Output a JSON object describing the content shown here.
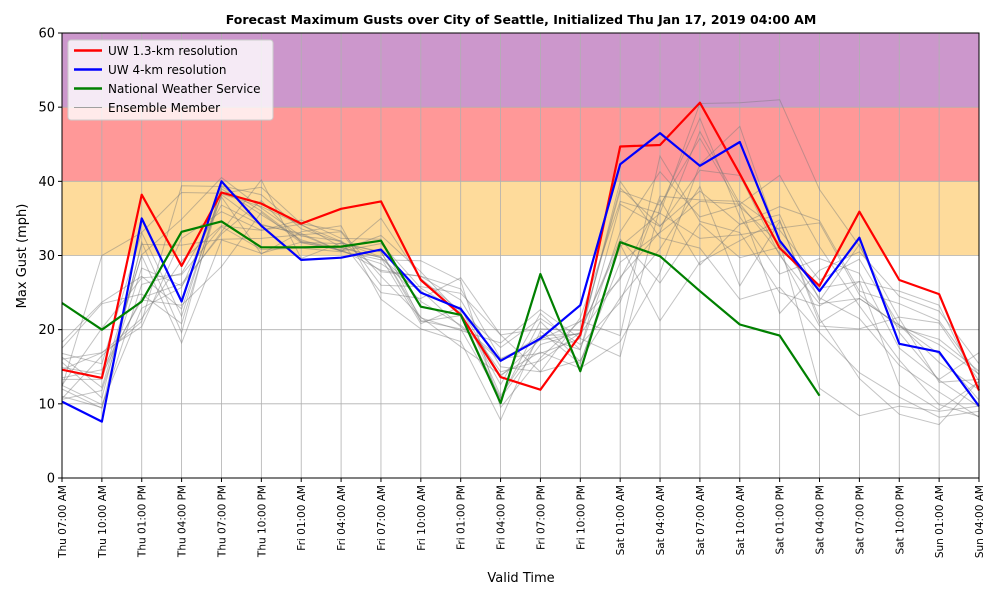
{
  "chart_data": {
    "type": "line",
    "title": "Forecast Maximum Gusts over City of Seattle, Initialized Thu Jan 17, 2019 04:00 AM",
    "xlabel": "Valid Time",
    "ylabel": "Max Gust (mph)",
    "ylim": [
      0,
      60
    ],
    "yticks": [
      0,
      10,
      20,
      30,
      40,
      50,
      60
    ],
    "grid": true,
    "legend_position": "top-left",
    "categories": [
      "Thu 07:00 AM",
      "Thu 10:00 AM",
      "Thu 01:00 PM",
      "Thu 04:00 PM",
      "Thu 07:00 PM",
      "Thu 10:00 PM",
      "Fri 01:00 AM",
      "Fri 04:00 AM",
      "Fri 07:00 AM",
      "Fri 10:00 AM",
      "Fri 01:00 PM",
      "Fri 04:00 PM",
      "Fri 07:00 PM",
      "Fri 10:00 PM",
      "Sat 01:00 AM",
      "Sat 04:00 AM",
      "Sat 07:00 AM",
      "Sat 10:00 AM",
      "Sat 01:00 PM",
      "Sat 04:00 PM",
      "Sat 07:00 PM",
      "Sat 10:00 PM",
      "Sun 01:00 AM",
      "Sun 04:00 AM"
    ],
    "bands": [
      {
        "from": 30,
        "to": 40,
        "color": "#fedb9b"
      },
      {
        "from": 40,
        "to": 50,
        "color": "#ff9898"
      },
      {
        "from": 50,
        "to": 60,
        "color": "#cc97cc"
      }
    ],
    "series": [
      {
        "name": "UW 1.3-km resolution",
        "color": "#ff0000",
        "width": 2.2,
        "values": [
          14.6,
          13.5,
          38.2,
          28.6,
          38.5,
          37.0,
          34.3,
          36.3,
          37.3,
          26.7,
          22.0,
          13.6,
          11.9,
          19.3,
          44.7,
          44.9,
          50.6,
          41.0,
          31.0,
          25.9,
          35.9,
          26.7,
          24.8,
          11.8
        ]
      },
      {
        "name": "UW 4-km resolution",
        "color": "#0000ff",
        "width": 2.2,
        "values": [
          10.3,
          7.6,
          35.0,
          23.8,
          40.0,
          34.0,
          29.4,
          29.7,
          30.8,
          25.0,
          22.8,
          15.8,
          18.8,
          23.3,
          42.3,
          46.5,
          42.1,
          45.3,
          32.0,
          25.2,
          32.4,
          18.1,
          17.0,
          9.7
        ]
      },
      {
        "name": "National Weather Service",
        "color": "#008000",
        "width": 2.2,
        "values": [
          23.6,
          20.0,
          23.8,
          33.2,
          34.6,
          31.1,
          31.1,
          31.2,
          32.0,
          23.1,
          22.0,
          10.1,
          27.5,
          14.4,
          31.8,
          29.9,
          25.2,
          20.7,
          19.2,
          11.1,
          null,
          null,
          null,
          null
        ]
      }
    ],
    "ensemble": {
      "name": "Ensemble Member",
      "color": "#a0a0a0",
      "members": [
        [
          12.0,
          9.4,
          31.8,
          19.6,
          39.4,
          38.2,
          33.6,
          31.8,
          29.8,
          23.8,
          20.6,
          16.1,
          18.6,
          19.5,
          38.7,
          36.8,
          45.8,
          36.6,
          31.6,
          24.3,
          21.5,
          15.2,
          11.6,
          8.2
        ],
        [
          16.8,
          15.4,
          33.1,
          21.8,
          39.0,
          35.5,
          32.1,
          30.6,
          31.6,
          25.6,
          22.3,
          12.6,
          22.2,
          17.3,
          36.9,
          33.9,
          41.5,
          40.8,
          30.0,
          23.5,
          24.2,
          20.6,
          18.0,
          14.0
        ],
        [
          10.6,
          11.8,
          28.3,
          25.9,
          33.2,
          40.2,
          29.6,
          31.7,
          30.5,
          21.1,
          21.9,
          14.3,
          15.8,
          19.6,
          39.1,
          34.0,
          38.7,
          34.2,
          35.5,
          23.9,
          31.5,
          19.6,
          13.2,
          9.6
        ],
        [
          18.3,
          23.7,
          27.2,
          22.8,
          38.2,
          34.2,
          32.8,
          30.6,
          28.9,
          25.3,
          20.4,
          15.8,
          19.2,
          19.4,
          27.1,
          33.2,
          46.7,
          37.0,
          30.3,
          20.5,
          20.1,
          21.7,
          20.9,
          13.1
        ],
        [
          16.0,
          16.9,
          21.5,
          29.3,
          34.0,
          33.4,
          34.2,
          31.1,
          29.7,
          20.8,
          23.1,
          11.1,
          19.1,
          17.3,
          33.2,
          41.3,
          35.2,
          36.8,
          22.2,
          28.0,
          30.5,
          24.5,
          22.5,
          15.4
        ],
        [
          14.9,
          14.0,
          24.3,
          26.2,
          32.9,
          37.4,
          31.8,
          30.7,
          32.7,
          27.8,
          22.1,
          10.7,
          21.1,
          15.7,
          29.1,
          33.1,
          37.3,
          36.9,
          40.8,
          31.2,
          23.2,
          15.9,
          9.9,
          8.3
        ],
        [
          14.6,
          16.9,
          20.4,
          32.3,
          35.9,
          33.4,
          34.8,
          32.3,
          32.2,
          21.2,
          20.1,
          10.8,
          18.0,
          19.6,
          32.2,
          26.3,
          34.3,
          29.7,
          31.1,
          25.6,
          26.5,
          25.2,
          23.3,
          12.1
        ],
        [
          16.3,
          12.2,
          30.1,
          34.9,
          40.5,
          36.4,
          32.6,
          32.0,
          27.8,
          27.2,
          24.0,
          15.0,
          14.3,
          21.6,
          37.3,
          35.7,
          50.5,
          50.6,
          51.0,
          38.9,
          31.3,
          21.5,
          12.9,
          13.3
        ],
        [
          10.7,
          16.5,
          21.1,
          39.4,
          39.3,
          36.0,
          31.9,
          31.0,
          29.7,
          25.0,
          22.9,
          13.7,
          18.7,
          21.1,
          26.8,
          37.5,
          28.7,
          34.2,
          36.6,
          34.7,
          25.2,
          23.5,
          21.2,
          13.9
        ],
        [
          12.5,
          20.2,
          27.0,
          27.4,
          33.9,
          30.8,
          31.0,
          30.5,
          35.0,
          26.9,
          22.5,
          17.6,
          21.5,
          18.0,
          23.7,
          38.0,
          37.5,
          37.3,
          33.4,
          26.7,
          29.5,
          20.6,
          15.6,
          11.9
        ],
        [
          13.3,
          13.3,
          30.0,
          18.2,
          32.1,
          30.3,
          31.8,
          31.6,
          30.5,
          21.6,
          19.9,
          18.2,
          22.7,
          18.8,
          16.4,
          36.5,
          48.5,
          35.2,
          27.5,
          29.6,
          27.6,
          17.5,
          13.3,
          16.9
        ],
        [
          12.5,
          9.9,
          22.9,
          25.7,
          37.9,
          30.2,
          33.2,
          34.0,
          24.1,
          20.1,
          18.4,
          7.8,
          19.8,
          15.4,
          31.2,
          35.7,
          32.3,
          32.8,
          33.7,
          34.4,
          24.7,
          20.3,
          18.7,
          14.4
        ],
        [
          15.6,
          10.8,
          31.5,
          31.4,
          32.2,
          32.3,
          32.8,
          33.2,
          26.0,
          25.8,
          24.9,
          19.3,
          20.1,
          19.9,
          31.5,
          21.2,
          29.1,
          32.0,
          34.8,
          20.9,
          24.2,
          20.6,
          16.7,
          10.5
        ],
        [
          11.0,
          9.5,
          26.1,
          27.6,
          36.8,
          34.1,
          33.0,
          30.6,
          29.4,
          29.3,
          26.6,
          9.5,
          16.2,
          21.2,
          19.2,
          43.4,
          34.6,
          33.1,
          25.0,
          23.2,
          26.5,
          12.5,
          9.2,
          13.0
        ],
        [
          13.5,
          14.6,
          24.0,
          23.3,
          28.5,
          35.8,
          31.7,
          30.8,
          28.0,
          27.2,
          25.5,
          16.1,
          16.8,
          18.8,
          40.0,
          32.4,
          31.0,
          24.1,
          25.7,
          19.6,
          14.2,
          10.9,
          8.2,
          9.0
        ],
        [
          12.3,
          30.0,
          33.1,
          38.5,
          38.4,
          39.2,
          34.3,
          33.3,
          27.2,
          21.7,
          17.7,
          13.9,
          17.0,
          14.8,
          18.4,
          27.7,
          42.3,
          47.4,
          31.8,
          12.1,
          8.4,
          9.7,
          9.0,
          9.7
        ],
        [
          17.5,
          23.5,
          24.8,
          20.8,
          38.3,
          36.6,
          34.1,
          31.9,
          25.0,
          24.2,
          27.0,
          19.3,
          14.3,
          15.9,
          24.3,
          30.9,
          39.3,
          25.9,
          34.6,
          21.5,
          13.4,
          8.6,
          7.2,
          13.1
        ]
      ]
    }
  }
}
